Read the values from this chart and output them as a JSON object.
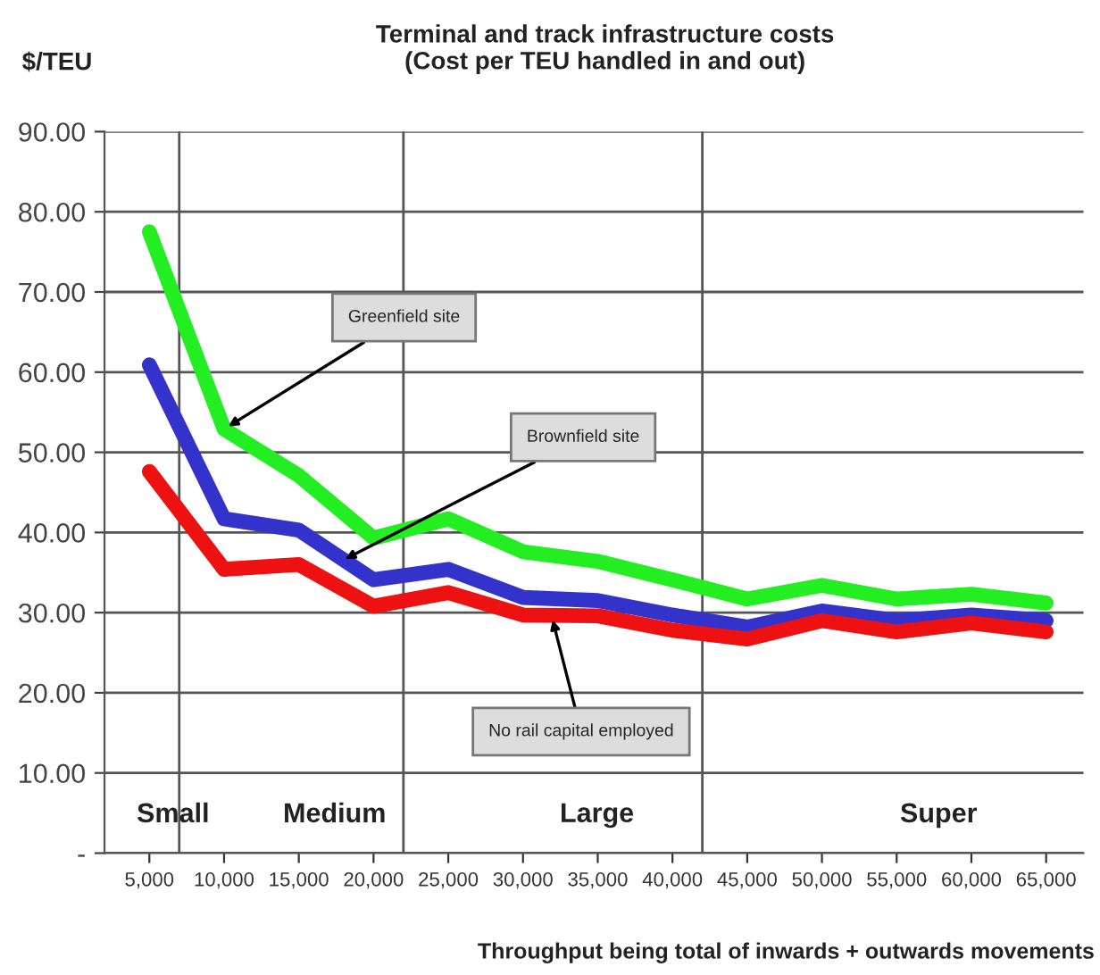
{
  "chart_data": {
    "type": "line",
    "title": "Terminal and track infrastructure costs\n(Cost per TEU handled in and out)",
    "ylabel": "$/TEU",
    "xlabel": "Throughput being total of inwards + outwards movements",
    "x": [
      5000,
      10000,
      15000,
      20000,
      25000,
      30000,
      35000,
      40000,
      45000,
      50000,
      55000,
      60000,
      65000
    ],
    "series": [
      {
        "color": "#22ee22",
        "values": [
          77.5,
          52.9,
          47.1,
          39.3,
          41.7,
          37.6,
          36.4,
          34.1,
          31.7,
          33.4,
          31.7,
          32.3,
          31.2
        ]
      },
      {
        "color": "#3333cc",
        "values": [
          60.9,
          41.7,
          40.3,
          34.1,
          35.4,
          31.9,
          31.5,
          29.7,
          28.2,
          30.2,
          29.0,
          29.7,
          29.0
        ]
      },
      {
        "color": "#ee1111",
        "values": [
          47.6,
          35.4,
          36.0,
          30.8,
          32.5,
          29.7,
          29.6,
          27.8,
          26.7,
          29.0,
          27.6,
          28.7,
          27.6
        ]
      }
    ],
    "xlim": [
      2000,
      67500
    ],
    "xticks": [
      {
        "value": 5000,
        "label": "5,000"
      },
      {
        "value": 10000,
        "label": "10,000"
      },
      {
        "value": 15000,
        "label": "15,000"
      },
      {
        "value": 20000,
        "label": "20,000"
      },
      {
        "value": 25000,
        "label": "25,000"
      },
      {
        "value": 30000,
        "label": "30,000"
      },
      {
        "value": 35000,
        "label": "35,000"
      },
      {
        "value": 40000,
        "label": "40,000"
      },
      {
        "value": 45000,
        "label": "45,000"
      },
      {
        "value": 50000,
        "label": "50,000"
      },
      {
        "value": 55000,
        "label": "55,000"
      },
      {
        "value": 60000,
        "label": "60,000"
      },
      {
        "value": 65000,
        "label": "65,000"
      }
    ],
    "ylim": [
      0,
      90
    ],
    "yticks": [
      {
        "value": 0,
        "label": "-"
      },
      {
        "value": 10,
        "label": "10.00"
      },
      {
        "value": 20,
        "label": "20.00"
      },
      {
        "value": 30,
        "label": "30.00"
      },
      {
        "value": 40,
        "label": "40.00"
      },
      {
        "value": 50,
        "label": "50.00"
      },
      {
        "value": 60,
        "label": "60.00"
      },
      {
        "value": 70,
        "label": "70.00"
      },
      {
        "value": 80,
        "label": "80.00"
      },
      {
        "value": 90,
        "label": "90.00"
      }
    ],
    "ref_lines": [
      {
        "axis": "x",
        "value": 7000,
        "color": "#555555"
      },
      {
        "axis": "x",
        "value": 22000,
        "color": "#555555"
      },
      {
        "axis": "x",
        "value": 42000,
        "color": "#555555"
      }
    ],
    "annotations": [
      {
        "text": "Greenfield site",
        "x": 10000,
        "y": 52.9
      },
      {
        "text": "Brownfield site",
        "x": 17800,
        "y": 36.4
      },
      {
        "text": "No rail capital employed",
        "x": 31900,
        "y": 29.7
      },
      "Small",
      "Medium",
      "Large",
      "Super"
    ],
    "grid": "y",
    "legend": false,
    "marker": "none",
    "line_style": "solid"
  }
}
